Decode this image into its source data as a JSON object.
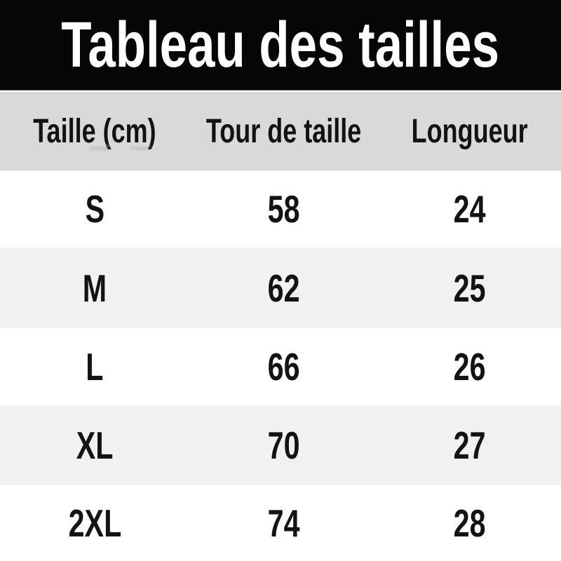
{
  "title": "Tableau des tailles",
  "chart_data": {
    "type": "table",
    "title": "Tableau des tailles",
    "columns": [
      "Taille (cm)",
      "Tour de taille",
      "Longueur"
    ],
    "rows": [
      [
        "S",
        "58",
        "24"
      ],
      [
        "M",
        "62",
        "25"
      ],
      [
        "L",
        "66",
        "26"
      ],
      [
        "XL",
        "70",
        "27"
      ],
      [
        "2XL",
        "74",
        "28"
      ]
    ]
  },
  "colors": {
    "banner_bg": "#060606",
    "banner_text": "#ffffff",
    "header_bg": "#d9d9d9",
    "row_bg": "#ffffff",
    "row_alt_bg": "#f1f1f1",
    "text": "#131313"
  }
}
